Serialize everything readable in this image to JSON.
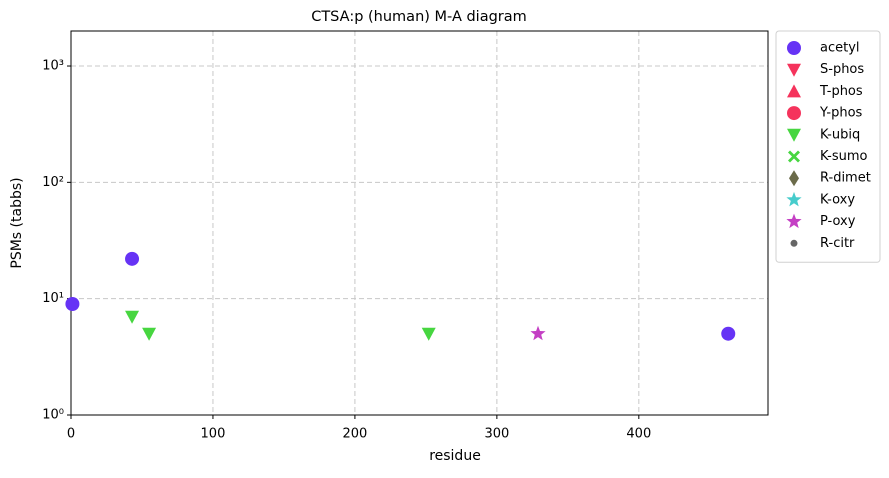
{
  "chart_data": {
    "type": "scatter",
    "title": "CTSA:p (human) M-A diagram",
    "x_label": "residue",
    "y_label": "PSMs (tabbs)",
    "xlim": [
      0,
      491
    ],
    "xticks": [
      0,
      100,
      200,
      300,
      400
    ],
    "ylim": [
      1,
      2000
    ],
    "y_scale": "log",
    "yticks": [
      {
        "value": 1,
        "label": "10⁰"
      },
      {
        "value": 10,
        "label": "10¹"
      },
      {
        "value": 100,
        "label": "10²"
      },
      {
        "value": 1000,
        "label": "10³"
      }
    ],
    "grid": true,
    "legend": "outside right",
    "series": [
      {
        "name": "acetyl",
        "color": "#6633f5",
        "marker": "circle",
        "x": [
          1,
          43,
          463
        ],
        "values": [
          9,
          22,
          5
        ]
      },
      {
        "name": "S-phos",
        "color": "#f5335c",
        "marker": "triangle-down",
        "x": [],
        "values": []
      },
      {
        "name": "T-phos",
        "color": "#f5335c",
        "marker": "triangle-up",
        "x": [],
        "values": []
      },
      {
        "name": "Y-phos",
        "color": "#f5335c",
        "marker": "circle",
        "x": [],
        "values": []
      },
      {
        "name": "K-ubiq",
        "color": "#47d640",
        "marker": "triangle-down",
        "x": [
          43,
          55,
          252
        ],
        "values": [
          7,
          5,
          5
        ]
      },
      {
        "name": "K-sumo",
        "color": "#47d640",
        "marker": "x",
        "x": [],
        "values": []
      },
      {
        "name": "R-dimet",
        "color": "#6b6b4a",
        "marker": "diamond",
        "x": [],
        "values": []
      },
      {
        "name": "K-oxy",
        "color": "#47cccc",
        "marker": "star",
        "x": [],
        "values": []
      },
      {
        "name": "P-oxy",
        "color": "#c43fc4",
        "marker": "star",
        "x": [
          329
        ],
        "values": [
          5
        ]
      },
      {
        "name": "R-citr",
        "color": "#666666",
        "marker": "dot",
        "x": [],
        "values": []
      }
    ]
  }
}
